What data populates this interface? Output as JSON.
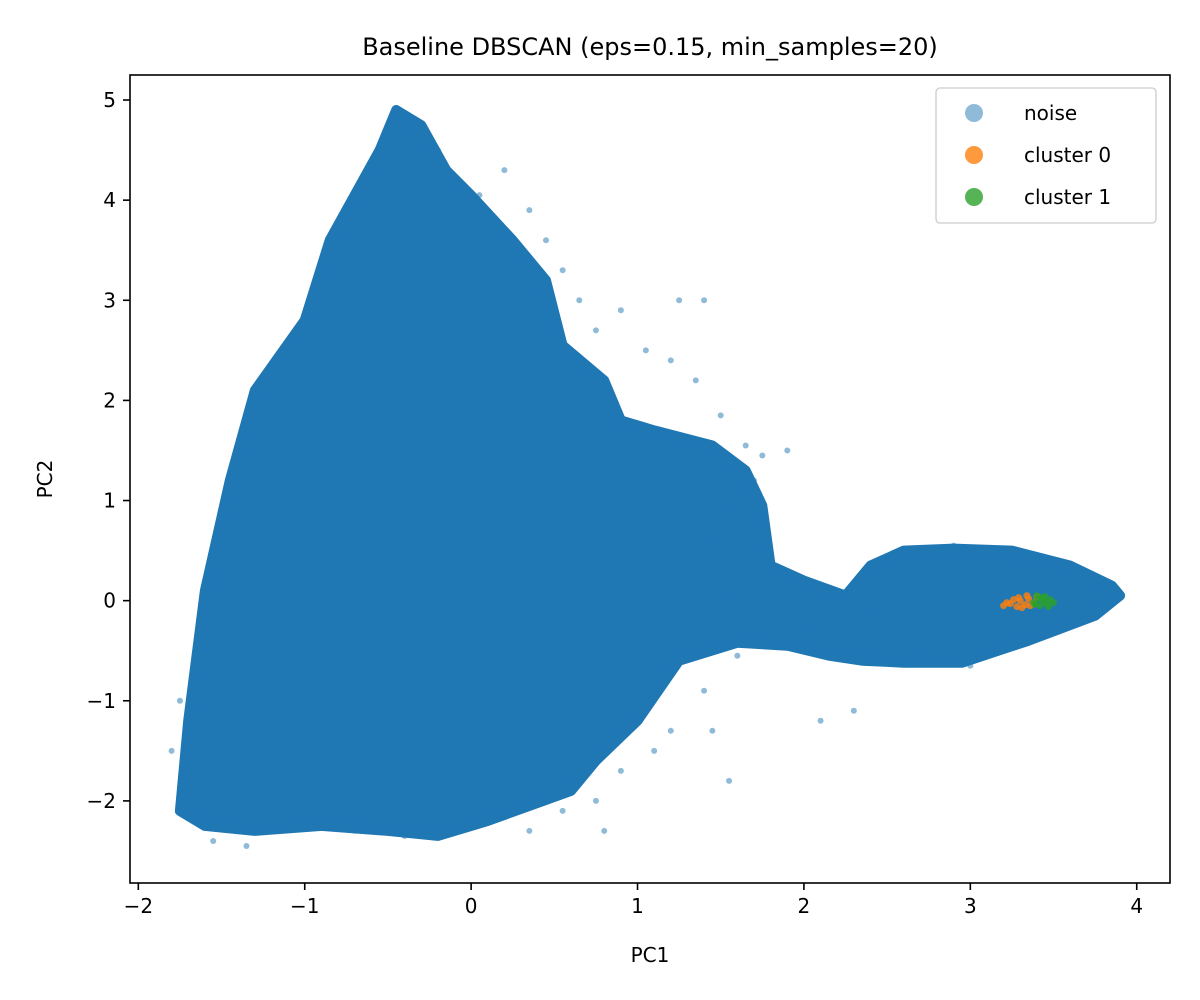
{
  "chart_data": {
    "type": "scatter",
    "title": "Baseline DBSCAN (eps=0.15, min_samples=20)",
    "xlabel": "PC1",
    "ylabel": "PC2",
    "xlim": [
      -2.05,
      4.2
    ],
    "ylim": [
      -2.82,
      5.25
    ],
    "xticks": [
      -2,
      -1,
      0,
      1,
      2,
      3,
      4
    ],
    "yticks": [
      -2,
      -1,
      0,
      1,
      2,
      3,
      4,
      5
    ],
    "xtick_labels": [
      "−2",
      "−1",
      "0",
      "1",
      "2",
      "3",
      "4"
    ],
    "ytick_labels": [
      "−2",
      "−1",
      "0",
      "1",
      "2",
      "3",
      "4",
      "5"
    ],
    "grid": false,
    "legend_position": "top-right",
    "series": [
      {
        "name": "noise",
        "color": "#1f77b4",
        "alpha": 0.5,
        "regions": [
          {
            "polygon": [
              [
                -1.75,
                -2.1
              ],
              [
                -1.7,
                -1.2
              ],
              [
                -1.6,
                0.1
              ],
              [
                -1.45,
                1.2
              ],
              [
                -1.3,
                2.1
              ],
              [
                -1.0,
                2.8
              ],
              [
                -0.85,
                3.6
              ],
              [
                -0.55,
                4.5
              ],
              [
                -0.45,
                4.9
              ],
              [
                -0.3,
                4.75
              ],
              [
                -0.15,
                4.3
              ],
              [
                0.0,
                4.05
              ],
              [
                0.25,
                3.6
              ],
              [
                0.45,
                3.2
              ],
              [
                0.55,
                2.55
              ],
              [
                0.8,
                2.2
              ],
              [
                0.9,
                1.8
              ],
              [
                1.1,
                1.7
              ],
              [
                1.45,
                1.55
              ],
              [
                1.65,
                1.3
              ],
              [
                1.75,
                0.95
              ],
              [
                1.8,
                0.35
              ],
              [
                2.0,
                0.2
              ],
              [
                2.25,
                0.05
              ],
              [
                2.4,
                0.35
              ],
              [
                2.6,
                0.5
              ],
              [
                2.9,
                0.52
              ],
              [
                3.25,
                0.5
              ],
              [
                3.6,
                0.35
              ],
              [
                3.85,
                0.15
              ],
              [
                3.9,
                0.05
              ],
              [
                3.75,
                -0.15
              ],
              [
                3.35,
                -0.4
              ],
              [
                2.95,
                -0.62
              ],
              [
                2.6,
                -0.62
              ],
              [
                2.35,
                -0.6
              ],
              [
                2.15,
                -0.55
              ],
              [
                1.9,
                -0.45
              ],
              [
                1.6,
                -0.42
              ],
              [
                1.25,
                -0.6
              ],
              [
                1.0,
                -1.2
              ],
              [
                0.75,
                -1.6
              ],
              [
                0.6,
                -1.9
              ],
              [
                0.35,
                -2.05
              ],
              [
                0.1,
                -2.2
              ],
              [
                -0.2,
                -2.35
              ],
              [
                -0.5,
                -2.3
              ],
              [
                -0.9,
                -2.25
              ],
              [
                -1.3,
                -2.3
              ],
              [
                -1.6,
                -2.25
              ]
            ]
          }
        ],
        "sample_points": [
          [
            -1.75,
            -2.1
          ],
          [
            -1.6,
            -2.15
          ],
          [
            -1.8,
            -1.5
          ],
          [
            -1.75,
            -1.0
          ],
          [
            -1.6,
            -0.3
          ],
          [
            -1.58,
            0.2
          ],
          [
            -1.5,
            0.8
          ],
          [
            -1.4,
            1.2
          ],
          [
            -1.3,
            1.8
          ],
          [
            -1.2,
            2.3
          ],
          [
            -1.05,
            2.6
          ],
          [
            -0.9,
            3.0
          ],
          [
            -0.8,
            3.6
          ],
          [
            -0.65,
            4.0
          ],
          [
            -0.55,
            4.5
          ],
          [
            -0.45,
            4.85
          ],
          [
            -0.35,
            4.7
          ],
          [
            -0.2,
            4.5
          ],
          [
            -0.1,
            4.2
          ],
          [
            0.05,
            4.05
          ],
          [
            0.2,
            4.3
          ],
          [
            0.35,
            3.9
          ],
          [
            0.45,
            3.6
          ],
          [
            0.55,
            3.3
          ],
          [
            0.65,
            3.0
          ],
          [
            0.75,
            2.7
          ],
          [
            0.9,
            2.9
          ],
          [
            1.25,
            3.0
          ],
          [
            1.4,
            3.0
          ],
          [
            1.05,
            2.5
          ],
          [
            1.2,
            2.4
          ],
          [
            1.35,
            2.2
          ],
          [
            1.5,
            1.85
          ],
          [
            1.65,
            1.55
          ],
          [
            1.75,
            1.45
          ],
          [
            1.9,
            1.5
          ],
          [
            1.7,
            1.2
          ],
          [
            1.6,
            0.9
          ],
          [
            1.45,
            0.6
          ],
          [
            1.3,
            0.3
          ],
          [
            1.55,
            0.05
          ],
          [
            1.75,
            -0.1
          ],
          [
            2.0,
            -0.3
          ],
          [
            2.2,
            -0.5
          ],
          [
            2.4,
            -0.1
          ],
          [
            2.55,
            0.2
          ],
          [
            2.75,
            0.4
          ],
          [
            2.9,
            0.55
          ],
          [
            3.1,
            0.45
          ],
          [
            3.3,
            0.4
          ],
          [
            3.55,
            0.3
          ],
          [
            3.75,
            0.15
          ],
          [
            3.88,
            0.08
          ],
          [
            3.6,
            -0.2
          ],
          [
            3.3,
            -0.4
          ],
          [
            3.0,
            -0.65
          ],
          [
            2.7,
            -0.55
          ],
          [
            2.4,
            -0.5
          ],
          [
            2.1,
            -1.2
          ],
          [
            2.3,
            -1.1
          ],
          [
            1.6,
            -0.55
          ],
          [
            1.4,
            -0.9
          ],
          [
            1.2,
            -1.3
          ],
          [
            1.55,
            -1.8
          ],
          [
            1.45,
            -1.3
          ],
          [
            1.1,
            -1.5
          ],
          [
            0.9,
            -1.7
          ],
          [
            0.75,
            -2.0
          ],
          [
            0.8,
            -2.3
          ],
          [
            0.55,
            -2.1
          ],
          [
            0.35,
            -2.3
          ],
          [
            0.15,
            -2.15
          ],
          [
            -0.1,
            -2.3
          ],
          [
            -0.4,
            -2.35
          ],
          [
            -0.7,
            -2.3
          ],
          [
            -1.0,
            -2.25
          ],
          [
            -1.25,
            -2.3
          ],
          [
            -1.5,
            -2.2
          ],
          [
            -1.35,
            -2.45
          ],
          [
            -1.55,
            -2.4
          ]
        ]
      },
      {
        "name": "cluster 0",
        "color": "#ff7f0e",
        "alpha": 0.8,
        "points": [
          [
            3.2,
            -0.05
          ],
          [
            3.24,
            -0.03
          ],
          [
            3.28,
            -0.06
          ],
          [
            3.3,
            0.0
          ],
          [
            3.33,
            -0.04
          ],
          [
            3.35,
            0.02
          ],
          [
            3.38,
            -0.02
          ],
          [
            3.4,
            0.04
          ],
          [
            3.26,
            0.01
          ],
          [
            3.31,
            -0.07
          ],
          [
            3.36,
            -0.05
          ],
          [
            3.22,
            -0.02
          ],
          [
            3.29,
            0.03
          ],
          [
            3.34,
            0.05
          ]
        ]
      },
      {
        "name": "cluster 1",
        "color": "#2ca02c",
        "alpha": 0.8,
        "points": [
          [
            3.38,
            -0.02
          ],
          [
            3.41,
            0.02
          ],
          [
            3.44,
            0.0
          ],
          [
            3.46,
            -0.03
          ],
          [
            3.48,
            0.01
          ],
          [
            3.42,
            -0.05
          ],
          [
            3.45,
            0.04
          ],
          [
            3.4,
            0.05
          ],
          [
            3.47,
            -0.06
          ],
          [
            3.5,
            -0.02
          ],
          [
            3.43,
            0.03
          ],
          [
            3.39,
            -0.04
          ]
        ]
      }
    ]
  }
}
